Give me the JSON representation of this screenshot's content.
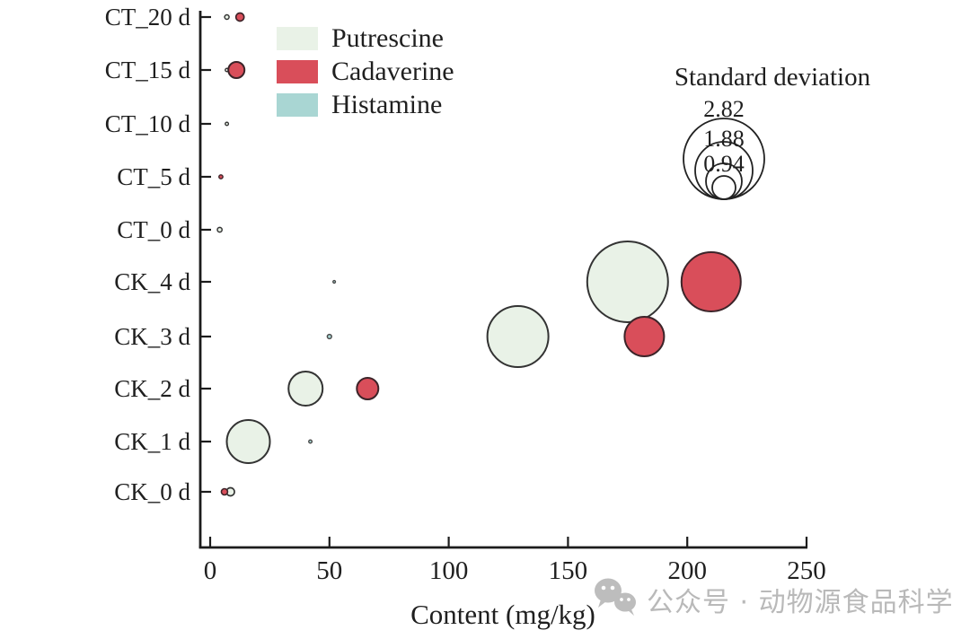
{
  "legend": {
    "items": [
      {
        "label": "Putrescine",
        "color": "#e9f2e7"
      },
      {
        "label": "Cadaverine",
        "color": "#d94e5a"
      },
      {
        "label": "Histamine",
        "color": "#a9d6d3"
      }
    ]
  },
  "size_legend": {
    "title": "Standard deviation",
    "entries": [
      {
        "sd": "2.82",
        "radius": 45
      },
      {
        "sd": "1.88",
        "radius": 32
      },
      {
        "sd": "0.94",
        "radius": 20
      }
    ],
    "smallest_circle_radius": 13
  },
  "watermark": {
    "text": "公众号 · 动物源食品科学",
    "icon": "wechat-icon",
    "color": "#b9b9b9"
  },
  "chart_data": {
    "type": "scatter",
    "subtype": "bubble",
    "title": "",
    "xlabel": "Content (mg/kg)",
    "ylabel": "",
    "xlim": [
      0,
      250
    ],
    "grid": false,
    "bubble_size_encodes": "standard deviation",
    "x_ticks": [
      "0",
      "50",
      "100",
      "150",
      "200",
      "250"
    ],
    "x_tick_values": [
      0,
      50,
      100,
      150,
      200,
      250
    ],
    "categories": [
      "CT_20 d",
      "CT_15 d",
      "CT_10 d",
      "CT_5 d",
      "CT_0 d",
      "CK_4 d",
      "CK_3 d",
      "CK_2 d",
      "CK_1 d",
      "CK_0 d"
    ],
    "series": [
      {
        "name": "Putrescine",
        "fill": "#e9f2e7",
        "stroke": "#333333",
        "points": [
          {
            "category": "CT_20 d",
            "content": 7,
            "sd": 0.02,
            "radius": 2.5
          },
          {
            "category": "CT_15 d",
            "content": 7,
            "sd": 0.01,
            "radius": 1.8
          },
          {
            "category": "CT_10 d",
            "content": 7,
            "sd": 0.01,
            "radius": 1.8
          },
          {
            "category": "CT_0 d",
            "content": 4,
            "sd": 0.02,
            "radius": 2.6
          },
          {
            "category": "CK_4 d",
            "content": 175,
            "sd": 2.82,
            "radius": 45
          },
          {
            "category": "CK_3 d",
            "content": 129,
            "sd": 2.0,
            "radius": 34
          },
          {
            "category": "CK_2 d",
            "content": 40,
            "sd": 0.86,
            "radius": 19
          },
          {
            "category": "CK_1 d",
            "content": 16,
            "sd": 1.24,
            "radius": 24
          },
          {
            "category": "CK_0 d",
            "content": 8.5,
            "sd": 0.05,
            "radius": 4.5
          }
        ]
      },
      {
        "name": "Cadaverine",
        "fill": "#d94e5a",
        "stroke": "#3c2429",
        "points": [
          {
            "category": "CT_20 d",
            "content": 12.5,
            "sd": 0.05,
            "radius": 4.5
          },
          {
            "category": "CT_15 d",
            "content": 11,
            "sd": 0.11,
            "radius": 9
          },
          {
            "category": "CT_5 d",
            "content": 4.5,
            "sd": 0.02,
            "radius": 2.2
          },
          {
            "category": "CK_4 d",
            "content": 210,
            "sd": 1.92,
            "radius": 33
          },
          {
            "category": "CK_3 d",
            "content": 182,
            "sd": 1.09,
            "radius": 22
          },
          {
            "category": "CK_2 d",
            "content": 66,
            "sd": 0.34,
            "radius": 12
          },
          {
            "category": "CK_0 d",
            "content": 6,
            "sd": 0.03,
            "radius": 3.5
          }
        ]
      },
      {
        "name": "Histamine",
        "fill": "#a9d6d3",
        "stroke": "#4a4a4a",
        "points": [
          {
            "category": "CK_4 d",
            "content": 52,
            "sd": 0.01,
            "radius": 1.4
          },
          {
            "category": "CK_3 d",
            "content": 50,
            "sd": 0.01,
            "radius": 2.4
          },
          {
            "category": "CK_1 d",
            "content": 42,
            "sd": 0.01,
            "radius": 1.8
          }
        ]
      }
    ]
  }
}
